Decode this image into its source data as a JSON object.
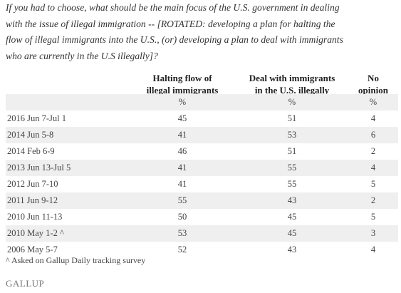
{
  "question_lines": [
    "If you had to choose, what should be the main focus of the U.S. government in dealing",
    "with the issue of illegal immigration -- [ROTATED: developing a plan for halting the",
    "flow of illegal immigrants into the U.S., (or) developing a plan to deal with immigrants",
    "who are currently in the U.S illegally]?"
  ],
  "table": {
    "headers": [
      [
        "Halting flow of",
        "illegal immigrants"
      ],
      [
        "Deal with immigrants",
        "in the U.S. illegally"
      ],
      [
        "No",
        "opinion"
      ]
    ],
    "units": [
      "%",
      "%",
      "%"
    ],
    "rows": [
      [
        "2016 Jun 7-Jul 1",
        45,
        51,
        4
      ],
      [
        "2014 Jun 5-8",
        41,
        53,
        6
      ],
      [
        "2014 Feb 6-9",
        46,
        51,
        2
      ],
      [
        "2013 Jun 13-Jul 5",
        41,
        55,
        4
      ],
      [
        "2012 Jun 7-10",
        41,
        55,
        5
      ],
      [
        "2011 Jun 9-12",
        55,
        43,
        2
      ],
      [
        "2010 Jun 11-13",
        50,
        45,
        5
      ],
      [
        "2010 May 1-2 ^",
        53,
        45,
        3
      ],
      [
        "2006 May 5-7",
        52,
        43,
        4
      ]
    ]
  },
  "footnote": "^ Asked on Gallup Daily tracking survey",
  "logo": "GALLUP"
}
